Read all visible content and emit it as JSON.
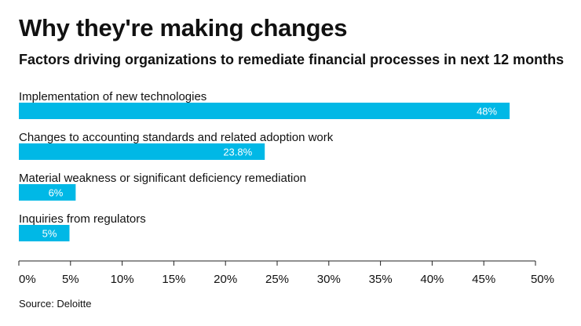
{
  "title": "Why they're making changes",
  "subtitle": "Factors driving organizations to remediate financial processes in next 12 months",
  "source": "Source: Deloitte",
  "colors": {
    "bar": "#00b8e6",
    "bar_label": "#ffffff",
    "axis": "#222222",
    "grid": "#e0e0e0",
    "text": "#111111"
  },
  "chart_data": {
    "type": "bar",
    "orientation": "horizontal",
    "categories": [
      "Implementation of new technologies",
      "Changes to accounting standards and related adoption work",
      "Material weakness or significant deficiency remediation",
      "Inquiries from regulators"
    ],
    "values": [
      47.5,
      23.8,
      5.5,
      4.9
    ],
    "data_labels": [
      "48%",
      "23.8%",
      "6%",
      "5%"
    ],
    "xlim": [
      0,
      50
    ],
    "xticks": [
      0,
      5,
      10,
      15,
      20,
      25,
      30,
      35,
      40,
      45,
      50
    ],
    "xtick_labels": [
      "0%",
      "5%",
      "10%",
      "15%",
      "20%",
      "25%",
      "30%",
      "35%",
      "40%",
      "45%",
      "50%"
    ],
    "grid": false
  }
}
